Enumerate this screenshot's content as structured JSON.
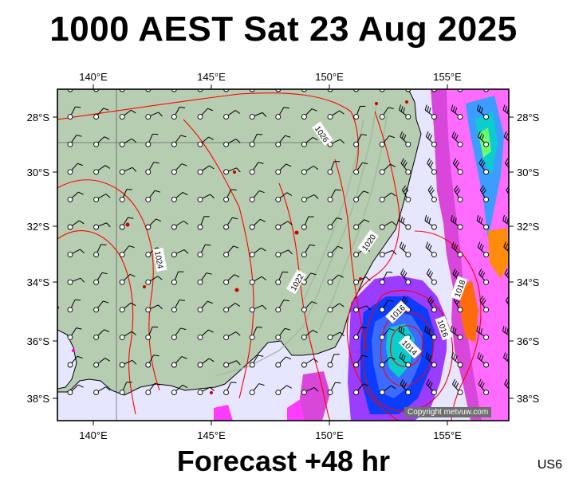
{
  "title": "1000 AEST Sat 23 Aug 2025",
  "footer": "Forecast +48 hr",
  "region_code": "US6",
  "copyright": "Copyright metvuw.com",
  "map": {
    "lon_range": [
      138.5,
      157.5
    ],
    "lat_range": [
      -38.7,
      -27.0
    ],
    "lon_ticks": [
      "140°E",
      "145°E",
      "150°E",
      "155°E"
    ],
    "lat_ticks": [
      "28°S",
      "30°S",
      "32°S",
      "34°S",
      "36°S",
      "38°S"
    ],
    "isobar_labels": [
      "1026",
      "1024",
      "1022",
      "1020",
      "1018",
      "1016",
      "1016",
      "1014"
    ],
    "colors": {
      "land": "#b7cdb1",
      "sea": "#e6e6ff",
      "isobar": "#ff0000",
      "coast": "#000000"
    }
  }
}
